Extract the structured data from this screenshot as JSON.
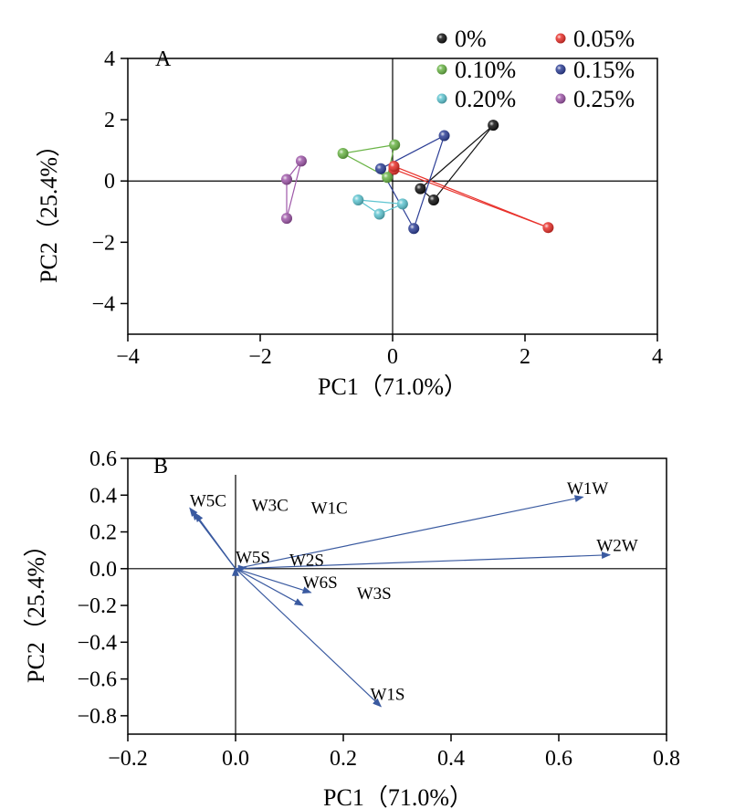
{
  "chart_data": [
    {
      "type": "scatter",
      "panel_label": "A",
      "xlabel": "PC1（71.0%）",
      "ylabel": "PC2（25.4%）",
      "xlim": [
        -4,
        4
      ],
      "ylim": [
        -5,
        4
      ],
      "xticks": [
        -4,
        -2,
        0,
        2,
        4
      ],
      "yticks": [
        -4,
        -2,
        0,
        2,
        4
      ],
      "xtick_labels": [
        "−4",
        "−2",
        "0",
        "2",
        "4"
      ],
      "ytick_labels": [
        "−4",
        "−2",
        "0",
        "2",
        "4"
      ],
      "zero_lines": true,
      "legend": "top-right",
      "series": [
        {
          "name": "0%",
          "color": "#111111",
          "centroid": [
            0.42,
            -0.25
          ],
          "points": [
            [
              1.52,
              1.82
            ],
            [
              0.62,
              -0.62
            ]
          ]
        },
        {
          "name": "0.05%",
          "color": "#e8302a",
          "centroid": [
            0.02,
            0.38
          ],
          "points": [
            [
              0.02,
              0.48
            ],
            [
              2.35,
              -1.52
            ]
          ]
        },
        {
          "name": "0.10%",
          "color": "#6ab446",
          "centroid": [
            -0.08,
            0.12
          ],
          "points": [
            [
              0.03,
              1.18
            ],
            [
              -0.75,
              0.9
            ]
          ]
        },
        {
          "name": "0.15%",
          "color": "#2d3f96",
          "centroid": [
            -0.18,
            0.4
          ],
          "points": [
            [
              0.78,
              1.48
            ],
            [
              0.32,
              -1.55
            ]
          ]
        },
        {
          "name": "0.20%",
          "color": "#5ec4d0",
          "centroid": [
            -0.52,
            -0.62
          ],
          "points": [
            [
              0.15,
              -0.75
            ],
            [
              -0.2,
              -1.08
            ]
          ]
        },
        {
          "name": "0.25%",
          "color": "#9e57a8",
          "centroid": [
            -1.6,
            0.05
          ],
          "points": [
            [
              -1.38,
              0.65
            ],
            [
              -1.6,
              -1.22
            ]
          ]
        }
      ]
    },
    {
      "type": "biplot",
      "panel_label": "B",
      "xlabel": "PC1（71.0%）",
      "ylabel": "PC2（25.4%）",
      "xlim": [
        -0.2,
        0.8
      ],
      "ylim": [
        -0.9,
        0.6
      ],
      "xticks": [
        -0.2,
        0.0,
        0.2,
        0.4,
        0.6,
        0.8
      ],
      "yticks": [
        0.6,
        0.4,
        0.2,
        0.0,
        -0.2,
        -0.4,
        -0.6,
        -0.8
      ],
      "xtick_labels": [
        "−0.2",
        "0.0",
        "0.2",
        "0.4",
        "0.6",
        "0.8"
      ],
      "ytick_labels": [
        "0.6",
        "0.4",
        "0.2",
        "0.0",
        "−0.2",
        "−0.4",
        "−0.6",
        "−0.8"
      ],
      "zero_lines": true,
      "arrow_color": "#3a5aa0",
      "vectors": [
        {
          "name": "W1W",
          "x": 0.645,
          "y": 0.39
        },
        {
          "name": "W2W",
          "x": 0.695,
          "y": 0.075
        },
        {
          "name": "W1S",
          "x": 0.27,
          "y": -0.75
        },
        {
          "name": "W3S",
          "x": 0.125,
          "y": -0.2
        },
        {
          "name": "W6S",
          "x": 0.14,
          "y": -0.13
        },
        {
          "name": "W2S",
          "x": 0.02,
          "y": 0.005
        },
        {
          "name": "W5S",
          "x": 0.0,
          "y": 0.005
        },
        {
          "name": "W5C",
          "x": -0.085,
          "y": 0.33
        },
        {
          "name": "W3C",
          "x": -0.075,
          "y": 0.3
        },
        {
          "name": "W1C",
          "x": -0.08,
          "y": 0.31
        }
      ],
      "vector_labels": [
        {
          "name": "W1W",
          "dx": 0.615,
          "dy": 0.44
        },
        {
          "name": "W2W",
          "dx": 0.67,
          "dy": 0.13
        },
        {
          "name": "W1S",
          "dx": 0.25,
          "dy": -0.68
        },
        {
          "name": "W3S",
          "dx": 0.225,
          "dy": -0.13
        },
        {
          "name": "W6S",
          "dx": 0.125,
          "dy": -0.07
        },
        {
          "name": "W2S",
          "dx": 0.1,
          "dy": 0.05
        },
        {
          "name": "W5S",
          "dx": 0.0,
          "dy": 0.065
        },
        {
          "name": "W5C",
          "dx": -0.085,
          "dy": 0.375
        },
        {
          "name": "W3C",
          "dx": 0.03,
          "dy": 0.35
        },
        {
          "name": "W1C",
          "dx": 0.14,
          "dy": 0.335
        }
      ]
    }
  ]
}
